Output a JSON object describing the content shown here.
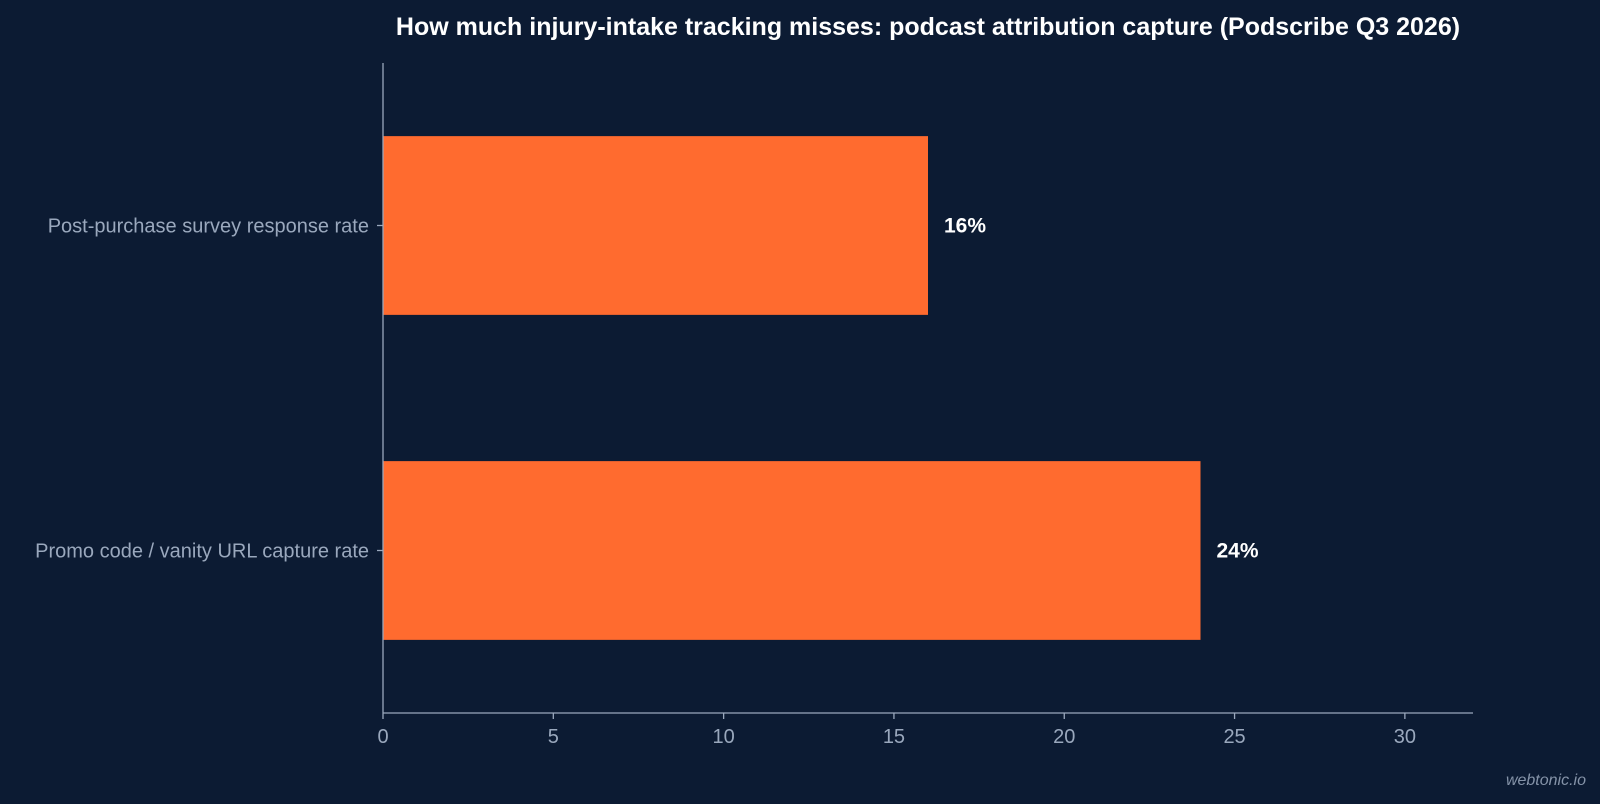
{
  "chart_data": {
    "type": "bar",
    "orientation": "horizontal",
    "title": "How much injury-intake tracking misses: podcast attribution capture (Podscribe Q3 2026)",
    "categories": [
      "Post-purchase survey response rate",
      "Promo code / vanity URL capture rate"
    ],
    "values": [
      16,
      24
    ],
    "data_labels": [
      "16%",
      "24%"
    ],
    "xlim": [
      0,
      32
    ],
    "x_ticks": [
      0,
      5,
      10,
      15,
      20,
      25,
      30
    ],
    "x_tick_labels": [
      "0",
      "5",
      "10",
      "15",
      "20",
      "25",
      "30"
    ],
    "grid": false,
    "legend": "none",
    "colors": {
      "background": "#0c1b33",
      "bar": "#ff6b2f",
      "axis": "#9aa8bd",
      "text": "#ffffff"
    }
  },
  "watermark": "webtonic.io"
}
